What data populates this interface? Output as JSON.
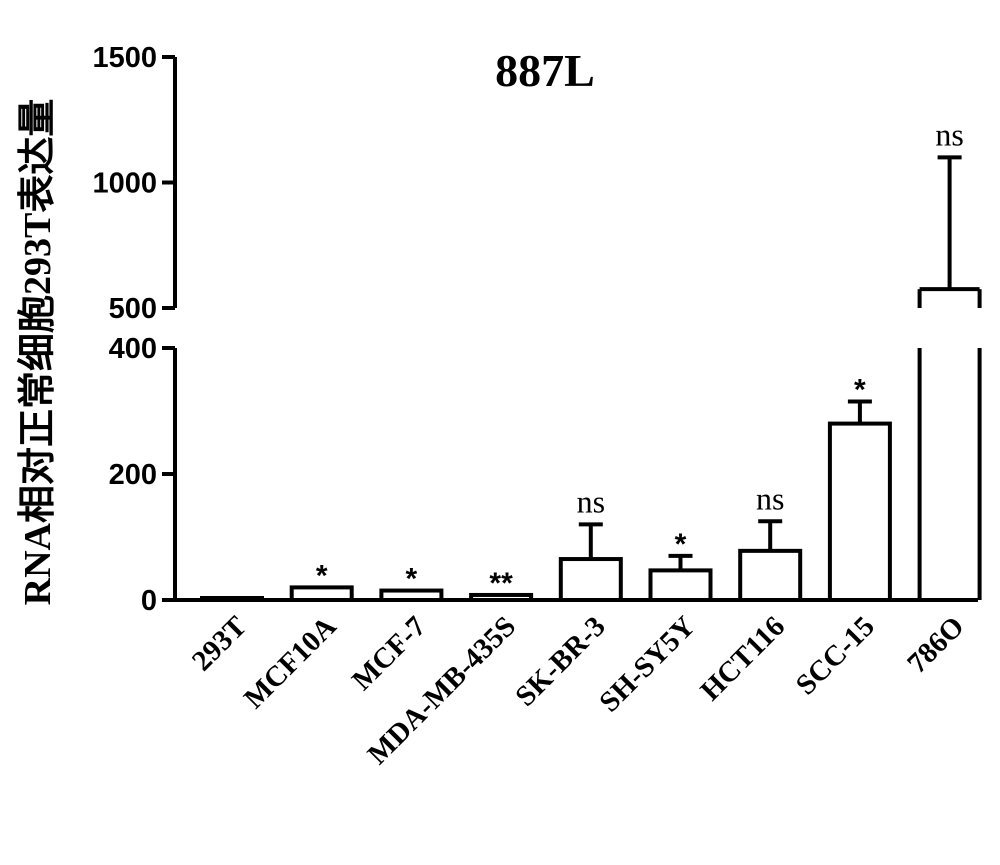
{
  "chart_data": {
    "type": "bar",
    "title": "887L",
    "ylabel": "RNA相对正常细胞293T表达量",
    "xlabel": "",
    "categories": [
      "293T",
      "MCF10A",
      "MCF-7",
      "MDA-MB-435S",
      "SK-BR-3",
      "SH-SY5Y",
      "HCT116",
      "SCC-15",
      "786O"
    ],
    "values": [
      2,
      20,
      15,
      8,
      65,
      47,
      78,
      280,
      575
    ],
    "error_upper": [
      0,
      7,
      5,
      3,
      120,
      70,
      125,
      315,
      1100
    ],
    "significance": [
      "",
      "*",
      "*",
      "**",
      "ns",
      "*",
      "ns",
      "*",
      "ns"
    ],
    "broken_y_axis": {
      "lower_segment": {
        "range": [
          0,
          400
        ],
        "ticks": [
          0,
          200,
          400
        ]
      },
      "upper_segment": {
        "range": [
          500,
          1500
        ],
        "ticks": [
          500,
          1000,
          1500
        ]
      }
    },
    "bar_fill": "#ffffff",
    "bar_stroke": "#000000",
    "grid": false,
    "legend": "none"
  }
}
